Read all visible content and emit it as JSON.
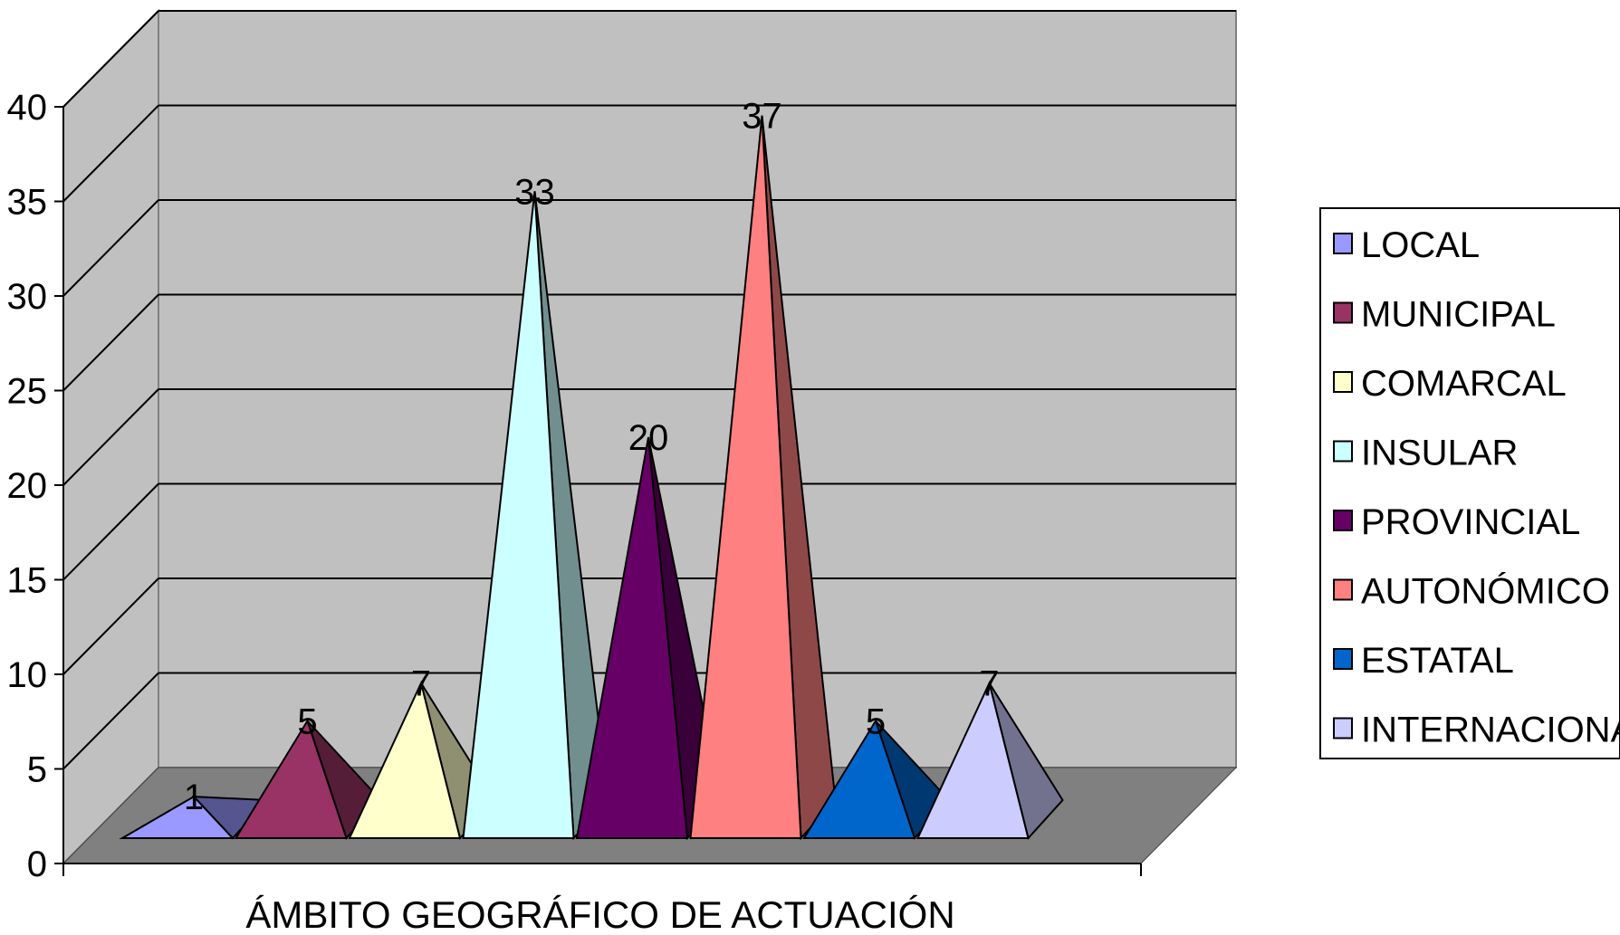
{
  "chart_data": {
    "type": "bar",
    "subtype": "3d-pyramid",
    "title": "",
    "xlabel": "ÁMBITO GEOGRÁFICO DE ACTUACIÓN",
    "ylabel": "",
    "ylim": [
      0,
      40
    ],
    "yticks": [
      "0",
      "5",
      "10",
      "15",
      "20",
      "25",
      "30",
      "35",
      "40"
    ],
    "grid": true,
    "legend_position": "right",
    "series": [
      {
        "name": "LOCAL",
        "value": 1,
        "label": "1",
        "color": "#9999FF",
        "side_color": "#55558F"
      },
      {
        "name": "MUNICIPAL",
        "value": 5,
        "label": "5",
        "color": "#993366",
        "side_color": "#561D39"
      },
      {
        "name": "COMARCAL",
        "value": 7,
        "label": "7",
        "color": "#FFFFCC",
        "side_color": "#8F8F72"
      },
      {
        "name": "INSULAR",
        "value": 33,
        "label": "33",
        "color": "#CCFFFF",
        "side_color": "#728F8F"
      },
      {
        "name": "PROVINCIAL",
        "value": 20,
        "label": "20",
        "color": "#660066",
        "side_color": "#390039"
      },
      {
        "name": "AUTONÓMICO",
        "value": 37,
        "label": "37",
        "color": "#FF8080",
        "side_color": "#8F4848"
      },
      {
        "name": "ESTATAL",
        "value": 5,
        "label": "5",
        "color": "#0066CC",
        "side_color": "#003972"
      },
      {
        "name": "INTERNACIONAL",
        "value": 7,
        "label": "7",
        "color": "#CCCCFF",
        "side_color": "#72728F"
      }
    ]
  }
}
